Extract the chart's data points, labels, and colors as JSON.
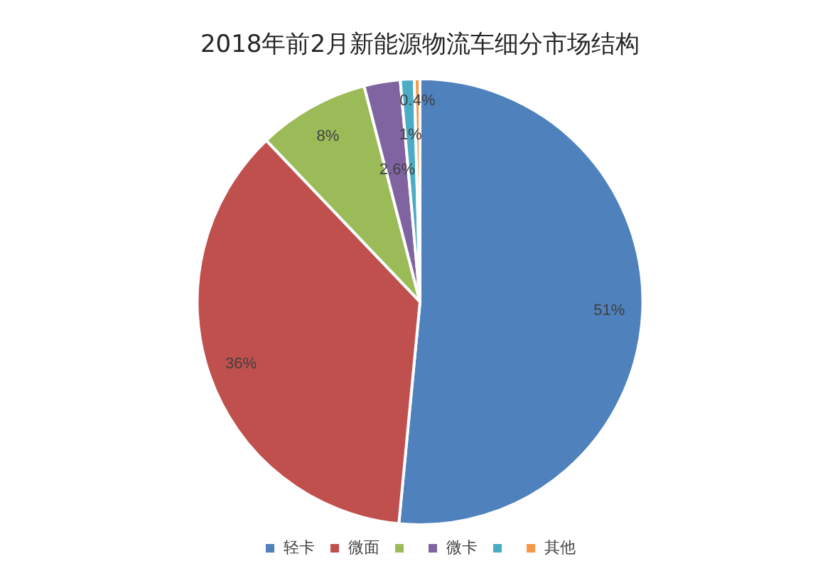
{
  "chart_data": {
    "type": "pie",
    "title": "2018年前2月新能源物流车细分市场结构",
    "categories": [
      "轻卡",
      "微面",
      null,
      "微卡",
      null,
      "其他"
    ],
    "values": [
      51,
      36,
      8,
      2.6,
      1,
      0.4
    ],
    "value_labels": [
      "51%",
      "36%",
      "8%",
      "2.6%",
      "1%",
      "0.4%"
    ],
    "colors": [
      "#4f81bd",
      "#c0504d",
      "#9bbb59",
      "#8064a2",
      "#4bacc6",
      "#f79646"
    ],
    "legend": "bottom"
  }
}
